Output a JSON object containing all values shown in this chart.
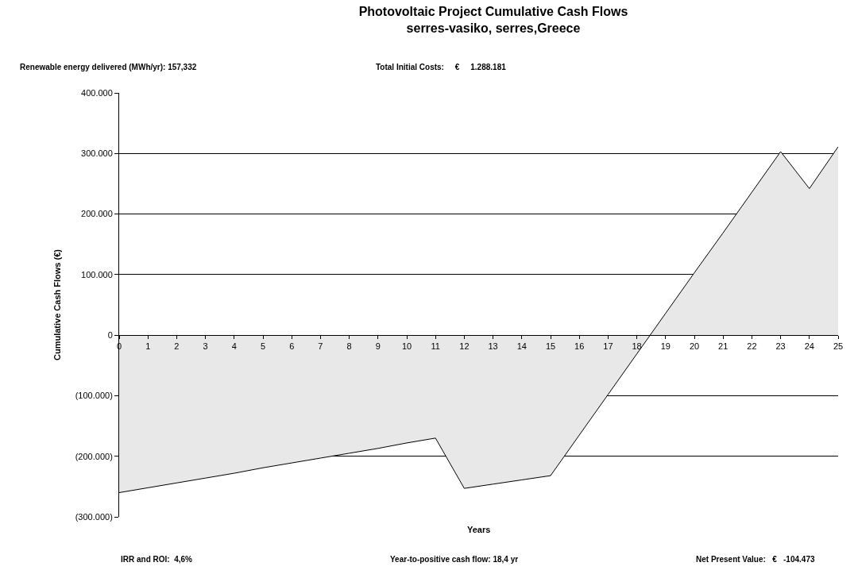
{
  "chart_data": {
    "type": "area",
    "title": "Photovoltaic Project Cumulative Cash Flows",
    "subtitle": "serres-vasiko, serres,Greece",
    "xlabel": "Years",
    "ylabel": "Cumulative Cash Flows (€)",
    "x": [
      0,
      1,
      2,
      3,
      4,
      5,
      6,
      7,
      8,
      9,
      10,
      11,
      12,
      13,
      14,
      15,
      16,
      17,
      18,
      19,
      20,
      21,
      22,
      23,
      24,
      25
    ],
    "series": [
      {
        "color": "#e8e8e8",
        "values": [
          -260000,
          -252000,
          -244000,
          -236000,
          -228000,
          -219000,
          -211000,
          -203000,
          -195000,
          -187000,
          -178000,
          -170000,
          -253000,
          -246000,
          -239000,
          -232000,
          -165000,
          -98000,
          -31000,
          36000,
          103000,
          169000,
          236000,
          303000,
          242000,
          311000
        ]
      }
    ],
    "xlim": [
      0,
      25
    ],
    "xticks": [
      0,
      1,
      2,
      3,
      4,
      5,
      6,
      7,
      8,
      9,
      10,
      11,
      12,
      13,
      14,
      15,
      16,
      17,
      18,
      19,
      20,
      21,
      22,
      23,
      24,
      25
    ],
    "ylim": [
      -300000,
      400000
    ],
    "yticks": [
      {
        "value": 400000,
        "label": "400.000"
      },
      {
        "value": 300000,
        "label": "300.000"
      },
      {
        "value": 200000,
        "label": "200.000"
      },
      {
        "value": 100000,
        "label": "100.000"
      },
      0,
      {
        "value": -100000,
        "label": "(100.000)"
      },
      {
        "value": -200000,
        "label": "(200.000)"
      },
      {
        "value": -300000,
        "label": "(300.000)"
      }
    ],
    "grid": "y",
    "annotations": [
      "Renewable energy delivered (MWh/yr): 157,332",
      "Total Initial Costs:     €     1.288.181",
      "IRR and ROI:  4,6%",
      "Year-to-positive cash flow: 18,4 yr",
      "Net Present Value:   €   -104.473"
    ]
  }
}
